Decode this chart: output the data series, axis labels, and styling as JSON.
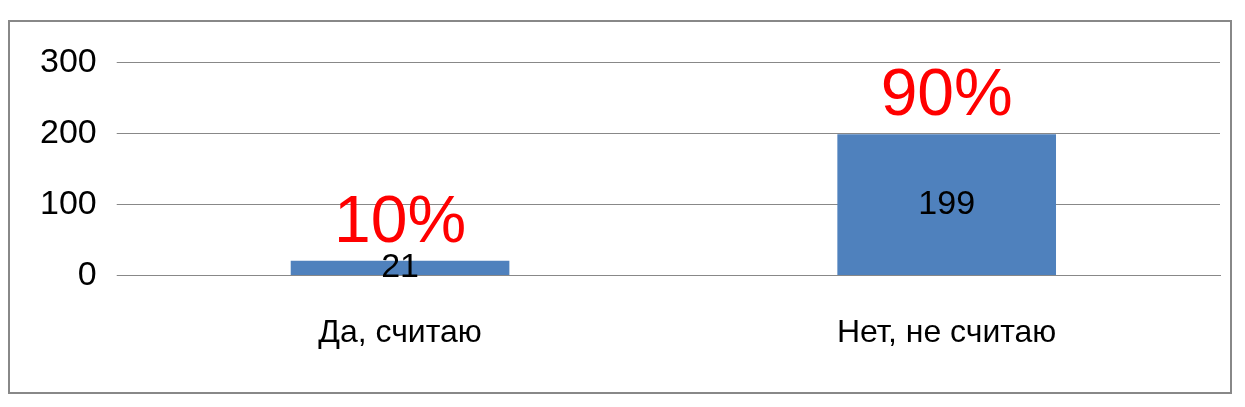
{
  "chart_data": {
    "type": "bar",
    "categories": [
      "Да, считаю",
      "Нет, не считаю"
    ],
    "values": [
      21,
      199
    ],
    "color": "#4f81bd",
    "ylim": [
      0,
      300
    ],
    "yticks": [
      0,
      100,
      200,
      300
    ],
    "grid": "y",
    "legend": false,
    "data_labels": true,
    "annotations": [
      {
        "text": "10%",
        "x": "Да, считаю",
        "y": 21
      },
      {
        "text": "90%",
        "x": "Нет, не считаю",
        "y": 199
      }
    ]
  }
}
